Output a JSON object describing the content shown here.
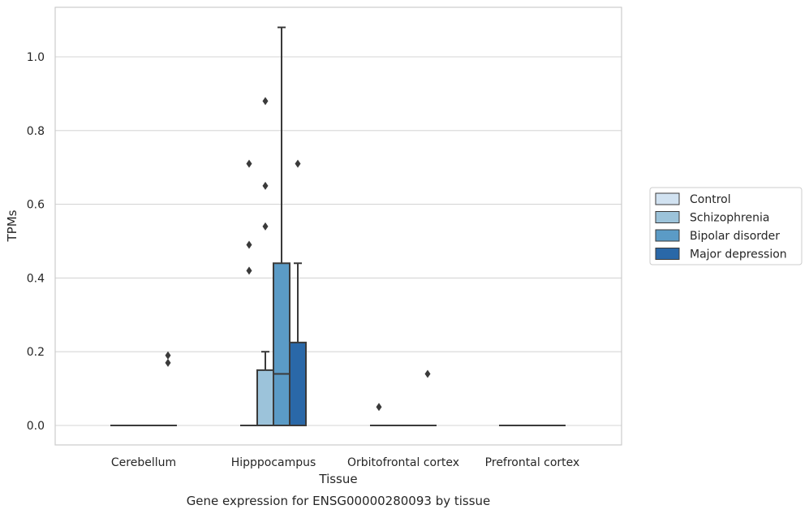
{
  "chart_data": {
    "type": "box",
    "title": "",
    "caption": "Gene expression for ENSG00000280093 by tissue",
    "xlabel": "Tissue",
    "ylabel": "TPMs",
    "ylim": [
      -0.05,
      1.135
    ],
    "yticks": [
      0.0,
      0.2,
      0.4,
      0.6,
      0.8,
      1.0
    ],
    "ytick_labels": [
      "0.0",
      "0.2",
      "0.4",
      "0.6",
      "0.8",
      "1.0"
    ],
    "grid": "horizontal",
    "legend_position": "right",
    "categories": [
      "Cerebellum",
      "Hipppocampus",
      "Orbitofrontal cortex",
      "Prefrontal cortex"
    ],
    "series": [
      {
        "name": "Control",
        "color": "#d1e2f1",
        "boxes": [
          {
            "q1": 0.0,
            "median": 0.0,
            "q3": 0.0,
            "whisker_low": 0.0,
            "whisker_high": 0.0,
            "outliers": []
          },
          {
            "q1": 0.0,
            "median": 0.0,
            "q3": 0.0,
            "whisker_low": 0.0,
            "whisker_high": 0.0,
            "outliers": [
              0.42,
              0.49,
              0.71
            ]
          },
          {
            "q1": 0.0,
            "median": 0.0,
            "q3": 0.0,
            "whisker_low": 0.0,
            "whisker_high": 0.0,
            "outliers": [
              0.05
            ]
          },
          {
            "q1": 0.0,
            "median": 0.0,
            "q3": 0.0,
            "whisker_low": 0.0,
            "whisker_high": 0.0,
            "outliers": []
          }
        ]
      },
      {
        "name": "Schizophrenia",
        "color": "#9cc3da",
        "boxes": [
          {
            "q1": 0.0,
            "median": 0.0,
            "q3": 0.0,
            "whisker_low": 0.0,
            "whisker_high": 0.0,
            "outliers": []
          },
          {
            "q1": 0.0,
            "median": 0.0,
            "q3": 0.15,
            "whisker_low": 0.0,
            "whisker_high": 0.2,
            "outliers": [
              0.54,
              0.65,
              0.88
            ]
          },
          {
            "q1": 0.0,
            "median": 0.0,
            "q3": 0.0,
            "whisker_low": 0.0,
            "whisker_high": 0.0,
            "outliers": []
          },
          {
            "q1": 0.0,
            "median": 0.0,
            "q3": 0.0,
            "whisker_low": 0.0,
            "whisker_high": 0.0,
            "outliers": []
          }
        ]
      },
      {
        "name": "Bipolar disorder",
        "color": "#5b9bc6",
        "boxes": [
          {
            "q1": 0.0,
            "median": 0.0,
            "q3": 0.0,
            "whisker_low": 0.0,
            "whisker_high": 0.0,
            "outliers": []
          },
          {
            "q1": 0.0,
            "median": 0.14,
            "q3": 0.44,
            "whisker_low": 0.0,
            "whisker_high": 1.08,
            "outliers": []
          },
          {
            "q1": 0.0,
            "median": 0.0,
            "q3": 0.0,
            "whisker_low": 0.0,
            "whisker_high": 0.0,
            "outliers": []
          },
          {
            "q1": 0.0,
            "median": 0.0,
            "q3": 0.0,
            "whisker_low": 0.0,
            "whisker_high": 0.0,
            "outliers": []
          }
        ]
      },
      {
        "name": "Major depression",
        "color": "#2a68a8",
        "boxes": [
          {
            "q1": 0.0,
            "median": 0.0,
            "q3": 0.0,
            "whisker_low": 0.0,
            "whisker_high": 0.0,
            "outliers": [
              0.17,
              0.19
            ]
          },
          {
            "q1": 0.0,
            "median": 0.0,
            "q3": 0.225,
            "whisker_low": 0.0,
            "whisker_high": 0.44,
            "outliers": [
              0.71
            ]
          },
          {
            "q1": 0.0,
            "median": 0.0,
            "q3": 0.0,
            "whisker_low": 0.0,
            "whisker_high": 0.0,
            "outliers": [
              0.14
            ]
          },
          {
            "q1": 0.0,
            "median": 0.0,
            "q3": 0.0,
            "whisker_low": 0.0,
            "whisker_high": 0.0,
            "outliers": []
          }
        ]
      }
    ]
  }
}
